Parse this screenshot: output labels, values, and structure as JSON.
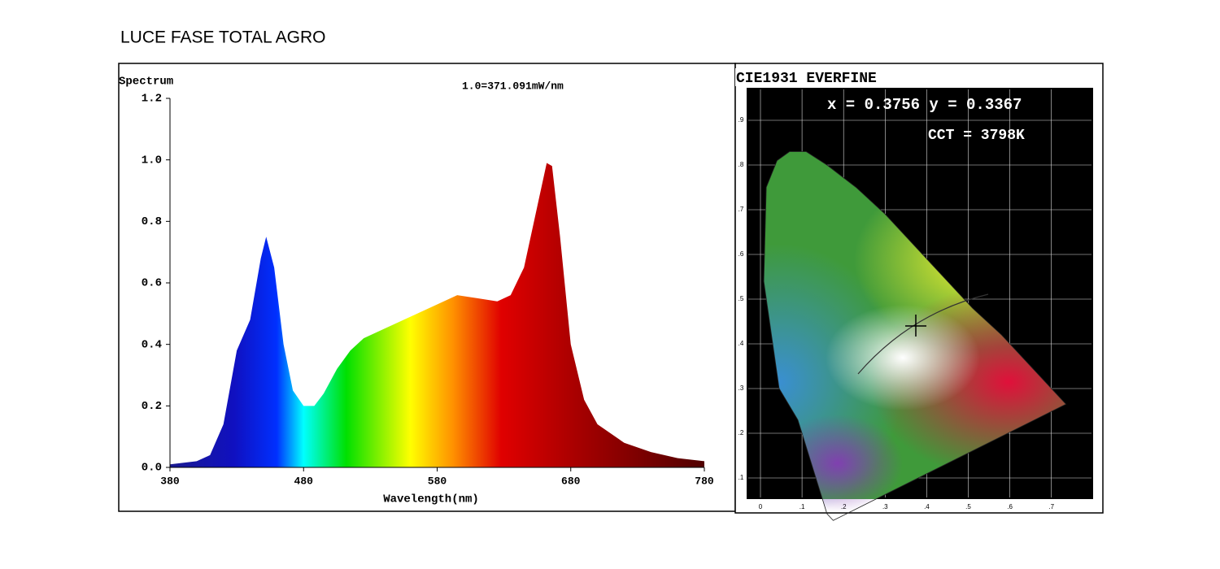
{
  "chart_data": {
    "type": "area",
    "title": "LUCE FASE TOTAL AGRO",
    "axis_title": "Spectrum",
    "annotation": "1.0=371.091mW/nm",
    "x_label": "Wavelength(nm)",
    "x": [
      380,
      400,
      410,
      420,
      430,
      440,
      448,
      452,
      458,
      465,
      472,
      480,
      488,
      495,
      505,
      515,
      525,
      540,
      560,
      580,
      595,
      610,
      625,
      635,
      645,
      655,
      662,
      666,
      672,
      680,
      690,
      700,
      720,
      740,
      760,
      780
    ],
    "values": [
      0.01,
      0.02,
      0.04,
      0.14,
      0.38,
      0.48,
      0.68,
      0.75,
      0.65,
      0.4,
      0.25,
      0.2,
      0.2,
      0.24,
      0.32,
      0.38,
      0.42,
      0.45,
      0.49,
      0.53,
      0.56,
      0.55,
      0.54,
      0.56,
      0.65,
      0.85,
      0.99,
      0.98,
      0.75,
      0.4,
      0.22,
      0.14,
      0.08,
      0.05,
      0.03,
      0.02
    ],
    "xlim": [
      380,
      780
    ],
    "xticks": [
      380,
      480,
      580,
      680,
      780
    ],
    "ylim": [
      0,
      1.2
    ],
    "yticks": [
      {
        "value": 0,
        "label": "0.0"
      },
      {
        "value": 0.2,
        "label": "0.2"
      },
      {
        "value": 0.4,
        "label": "0.4"
      },
      {
        "value": 0.6,
        "label": "0.6"
      },
      {
        "value": 0.8,
        "label": "0.8"
      },
      {
        "value": 1,
        "label": "1.0"
      },
      {
        "value": 1.2,
        "label": "1.2"
      }
    ]
  },
  "cie_panel": {
    "title": "CIE1931 EVERFINE",
    "coordinates": "x = 0.3756 y = 0.3367",
    "cct": "CCT = 3798K",
    "xticks": [
      {
        "value": 0,
        "label": "0"
      },
      {
        "value": 0.1,
        "label": ".1"
      },
      {
        "value": 0.2,
        "label": ".2"
      },
      {
        "value": 0.3,
        "label": ".3"
      },
      {
        "value": 0.4,
        "label": ".4"
      },
      {
        "value": 0.5,
        "label": ".5"
      },
      {
        "value": 0.6,
        "label": ".6"
      },
      {
        "value": 0.7,
        "label": ".7"
      }
    ],
    "yticks": [
      {
        "value": 0.1,
        "label": ".1"
      },
      {
        "value": 0.2,
        "label": ".2"
      },
      {
        "value": 0.3,
        "label": ".3"
      },
      {
        "value": 0.4,
        "label": ".4"
      },
      {
        "value": 0.5,
        "label": ".5"
      },
      {
        "value": 0.6,
        "label": ".6"
      },
      {
        "value": 0.7,
        "label": ".7"
      },
      {
        "value": 0.8,
        "label": ".8"
      },
      {
        "value": 0.9,
        "label": ".9"
      }
    ]
  }
}
